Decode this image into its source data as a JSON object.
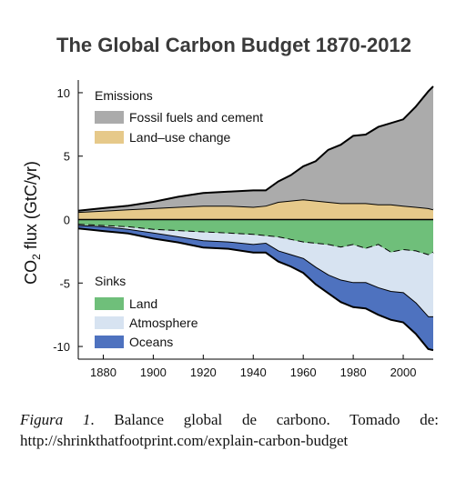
{
  "chart_data": {
    "type": "area",
    "title": "The Global Carbon Budget 1870-2012",
    "ylabel_main": "CO",
    "ylabel_sub": "2",
    "ylabel_rest": " flux (GtC/yr)",
    "xlim": [
      1870,
      2012
    ],
    "ylim": [
      -11,
      11
    ],
    "xticks": [
      1880,
      1900,
      1920,
      1940,
      1960,
      1980,
      2000
    ],
    "yticks": [
      10,
      5,
      0,
      -5,
      -10
    ],
    "emissions_legend_title": "Emissions",
    "sinks_legend_title": "Sinks",
    "emissions": [
      {
        "name": "Fossil fuels and cement",
        "color": "#ababab",
        "x": [
          1870,
          1880,
          1890,
          1900,
          1910,
          1920,
          1930,
          1940,
          1945,
          1950,
          1955,
          1960,
          1965,
          1970,
          1975,
          1980,
          1985,
          1990,
          1995,
          2000,
          2005,
          2010,
          2012
        ],
        "values": [
          0.1,
          0.2,
          0.3,
          0.5,
          0.8,
          1.0,
          1.1,
          1.3,
          1.2,
          1.6,
          2.0,
          2.6,
          3.1,
          4.1,
          4.6,
          5.3,
          5.4,
          6.1,
          6.4,
          6.8,
          7.9,
          9.2,
          9.7
        ]
      },
      {
        "name": "Land–use change",
        "color": "#e6c98a",
        "x": [
          1870,
          1880,
          1890,
          1900,
          1910,
          1920,
          1930,
          1940,
          1945,
          1950,
          1955,
          1960,
          1965,
          1970,
          1975,
          1980,
          1985,
          1990,
          1995,
          2000,
          2005,
          2010,
          2012
        ],
        "values": [
          0.6,
          0.7,
          0.8,
          0.9,
          1.0,
          1.1,
          1.1,
          1.0,
          1.1,
          1.4,
          1.5,
          1.6,
          1.5,
          1.4,
          1.3,
          1.3,
          1.3,
          1.2,
          1.2,
          1.1,
          1.0,
          0.9,
          0.8
        ]
      }
    ],
    "sinks": [
      {
        "name": "Land",
        "color": "#6fbf7a",
        "x": [
          1870,
          1880,
          1890,
          1900,
          1910,
          1920,
          1930,
          1940,
          1945,
          1950,
          1955,
          1960,
          1965,
          1970,
          1975,
          1980,
          1985,
          1990,
          1995,
          2000,
          2005,
          2010,
          2012
        ],
        "values": [
          -0.4,
          -0.5,
          -0.6,
          -0.8,
          -0.9,
          -1.0,
          -1.1,
          -1.2,
          -1.3,
          -1.4,
          -1.6,
          -1.8,
          -1.9,
          -2.0,
          -2.2,
          -2.0,
          -2.3,
          -2.0,
          -2.6,
          -2.4,
          -2.5,
          -2.8,
          -2.6
        ]
      },
      {
        "name": "Atmosphere",
        "color": "#d7e3f1",
        "x": [
          1870,
          1880,
          1890,
          1900,
          1910,
          1920,
          1930,
          1940,
          1945,
          1950,
          1955,
          1960,
          1965,
          1970,
          1975,
          1980,
          1985,
          1990,
          1995,
          2000,
          2005,
          2010,
          2012
        ],
        "values": [
          -0.1,
          -0.1,
          -0.2,
          -0.3,
          -0.5,
          -0.7,
          -0.7,
          -0.8,
          -0.6,
          -1.1,
          -1.2,
          -1.3,
          -1.9,
          -2.4,
          -2.6,
          -3.0,
          -2.7,
          -3.4,
          -3.1,
          -3.4,
          -4.1,
          -4.9,
          -5.1
        ]
      },
      {
        "name": "Oceans",
        "color": "#4e72bf",
        "x": [
          1870,
          1880,
          1890,
          1900,
          1910,
          1920,
          1930,
          1940,
          1945,
          1950,
          1955,
          1960,
          1965,
          1970,
          1975,
          1980,
          1985,
          1990,
          1995,
          2000,
          2005,
          2010,
          2012
        ],
        "values": [
          -0.2,
          -0.3,
          -0.3,
          -0.4,
          -0.4,
          -0.5,
          -0.5,
          -0.6,
          -0.7,
          -0.8,
          -0.9,
          -1.1,
          -1.3,
          -1.4,
          -1.7,
          -1.9,
          -2.0,
          -2.1,
          -2.2,
          -2.3,
          -2.4,
          -2.5,
          -2.6
        ]
      }
    ]
  },
  "caption": {
    "label": "Figura 1",
    "text": ". Balance global de carbono. Tomado de: http://shrinkthatfootprint.com/explain-carbon-budget"
  }
}
